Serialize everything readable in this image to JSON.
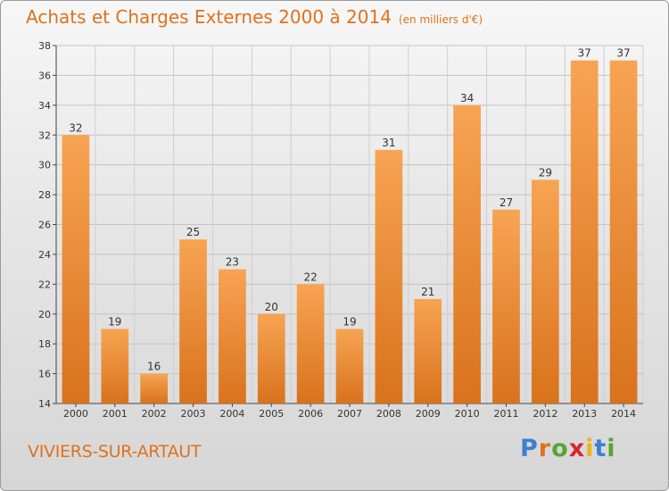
{
  "header": {
    "title": "Achats et Charges Externes 2000 à 2014",
    "unit": "(en milliers d'€)"
  },
  "footer": {
    "commune": "VIVIERS-SUR-ARTAUT",
    "logo_text": "Proxiti",
    "logo_colors": [
      "#3b7fd1",
      "#e0711c",
      "#55a633",
      "#d8262f",
      "#f0b41a",
      "#3b7fd1",
      "#55a633"
    ]
  },
  "colors": {
    "bar_top": "#f7a453",
    "bar_bottom": "#d9721c",
    "title": "#e0711c"
  },
  "chart_data": {
    "type": "bar",
    "categories": [
      "2000",
      "2001",
      "2002",
      "2003",
      "2004",
      "2005",
      "2006",
      "2007",
      "2008",
      "2009",
      "2010",
      "2011",
      "2012",
      "2013",
      "2014"
    ],
    "values": [
      32,
      19,
      16,
      25,
      23,
      20,
      22,
      19,
      31,
      21,
      34,
      27,
      29,
      37,
      37
    ],
    "ylim": [
      14,
      38
    ],
    "yticks": [
      14,
      16,
      18,
      20,
      22,
      24,
      26,
      28,
      30,
      32,
      34,
      36,
      38
    ],
    "grid": true,
    "legend": "none"
  }
}
